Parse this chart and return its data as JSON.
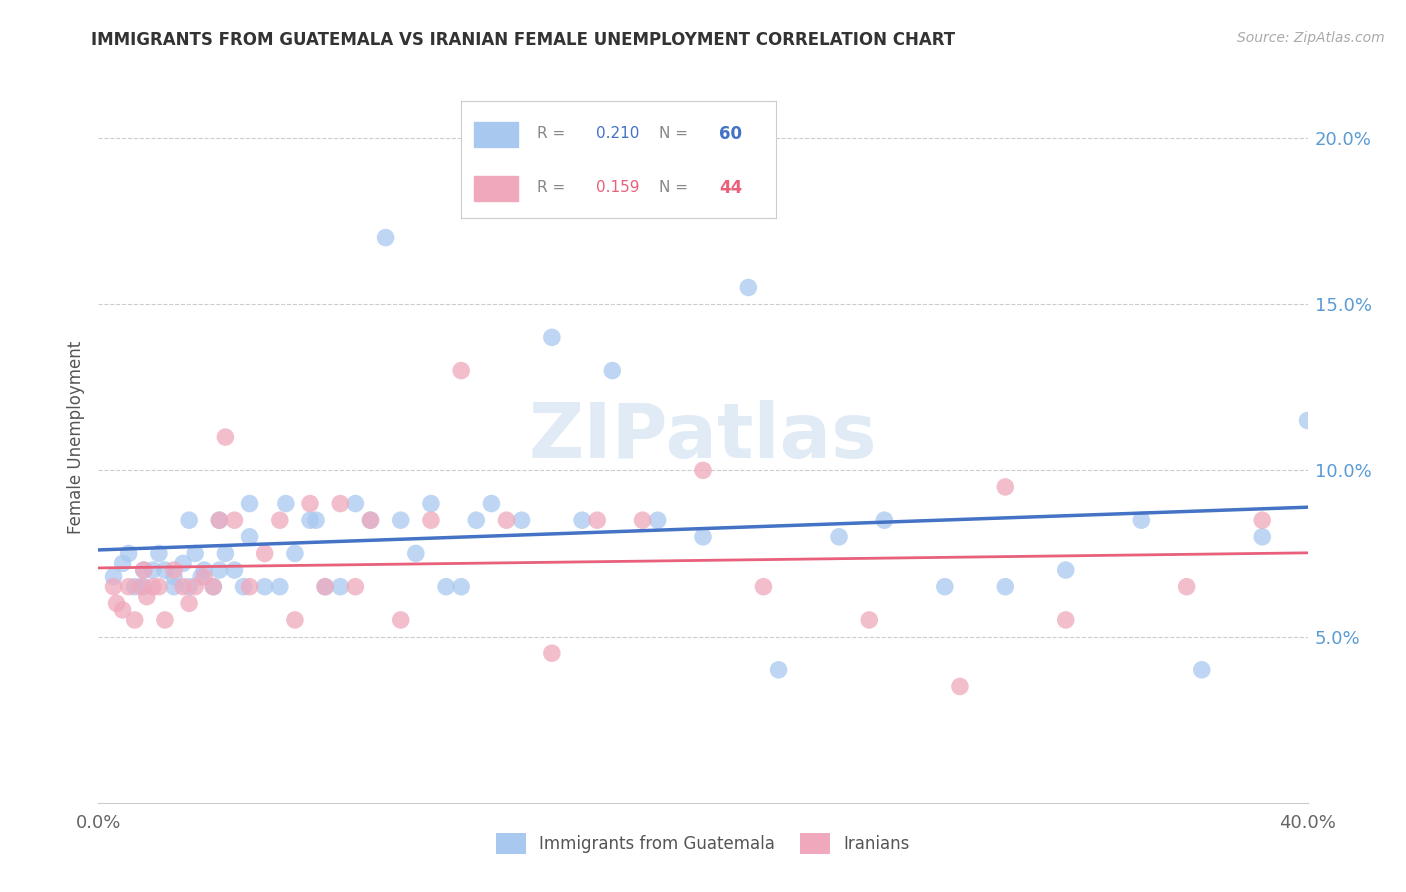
{
  "title": "IMMIGRANTS FROM GUATEMALA VS IRANIAN FEMALE UNEMPLOYMENT CORRELATION CHART",
  "source": "Source: ZipAtlas.com",
  "ylabel": "Female Unemployment",
  "right_yticks": [
    "20.0%",
    "15.0%",
    "10.0%",
    "5.0%"
  ],
  "right_ytick_vals": [
    0.2,
    0.15,
    0.1,
    0.05
  ],
  "xlim": [
    0.0,
    0.4
  ],
  "ylim": [
    0.0,
    0.22
  ],
  "watermark": "ZIPatlas",
  "legend_r1": "R = 0.210",
  "legend_n1": "N = 60",
  "legend_r2": "R = 0.159",
  "legend_n2": "N = 44",
  "legend_label1": "Immigrants from Guatemala",
  "legend_label2": "Iranians",
  "blue_color": "#A8C8F0",
  "pink_color": "#F0A8BC",
  "line_blue": "#4472C4",
  "line_pink": "#E8607A",
  "guatemala_x": [
    0.005,
    0.008,
    0.01,
    0.012,
    0.015,
    0.015,
    0.018,
    0.02,
    0.022,
    0.025,
    0.025,
    0.028,
    0.03,
    0.03,
    0.032,
    0.034,
    0.035,
    0.038,
    0.04,
    0.04,
    0.042,
    0.045,
    0.048,
    0.05,
    0.05,
    0.055,
    0.06,
    0.062,
    0.065,
    0.07,
    0.072,
    0.075,
    0.08,
    0.085,
    0.09,
    0.095,
    0.1,
    0.105,
    0.11,
    0.115,
    0.12,
    0.125,
    0.13,
    0.14,
    0.15,
    0.16,
    0.17,
    0.185,
    0.2,
    0.215,
    0.225,
    0.245,
    0.26,
    0.28,
    0.3,
    0.32,
    0.345,
    0.365,
    0.385,
    0.4
  ],
  "guatemala_y": [
    0.068,
    0.072,
    0.075,
    0.065,
    0.07,
    0.065,
    0.07,
    0.075,
    0.07,
    0.068,
    0.065,
    0.072,
    0.085,
    0.065,
    0.075,
    0.068,
    0.07,
    0.065,
    0.085,
    0.07,
    0.075,
    0.07,
    0.065,
    0.09,
    0.08,
    0.065,
    0.065,
    0.09,
    0.075,
    0.085,
    0.085,
    0.065,
    0.065,
    0.09,
    0.085,
    0.17,
    0.085,
    0.075,
    0.09,
    0.065,
    0.065,
    0.085,
    0.09,
    0.085,
    0.14,
    0.085,
    0.13,
    0.085,
    0.08,
    0.155,
    0.04,
    0.08,
    0.085,
    0.065,
    0.065,
    0.07,
    0.085,
    0.04,
    0.08,
    0.115
  ],
  "iranian_x": [
    0.005,
    0.006,
    0.008,
    0.01,
    0.012,
    0.014,
    0.015,
    0.016,
    0.018,
    0.02,
    0.022,
    0.025,
    0.028,
    0.03,
    0.032,
    0.035,
    0.038,
    0.04,
    0.042,
    0.045,
    0.05,
    0.055,
    0.06,
    0.065,
    0.07,
    0.075,
    0.08,
    0.085,
    0.09,
    0.1,
    0.11,
    0.12,
    0.135,
    0.15,
    0.165,
    0.18,
    0.2,
    0.22,
    0.255,
    0.285,
    0.3,
    0.32,
    0.36,
    0.385
  ],
  "iranian_y": [
    0.065,
    0.06,
    0.058,
    0.065,
    0.055,
    0.065,
    0.07,
    0.062,
    0.065,
    0.065,
    0.055,
    0.07,
    0.065,
    0.06,
    0.065,
    0.068,
    0.065,
    0.085,
    0.11,
    0.085,
    0.065,
    0.075,
    0.085,
    0.055,
    0.09,
    0.065,
    0.09,
    0.065,
    0.085,
    0.055,
    0.085,
    0.13,
    0.085,
    0.045,
    0.085,
    0.085,
    0.1,
    0.065,
    0.055,
    0.035,
    0.095,
    0.055,
    0.065,
    0.085
  ],
  "bg_color": "#FFFFFF",
  "grid_color": "#CCCCCC"
}
